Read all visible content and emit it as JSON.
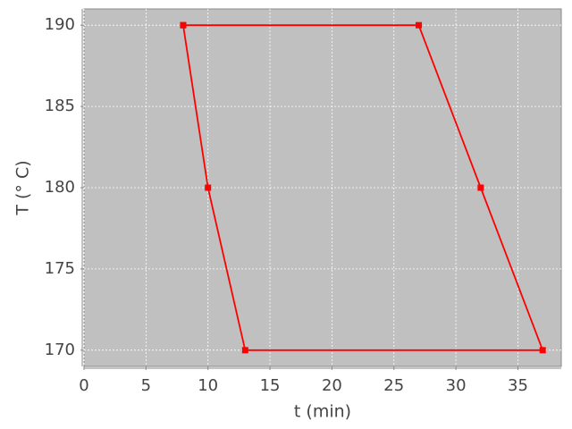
{
  "chart_data": {
    "type": "line",
    "x_label": "t (min)",
    "y_label": "T (° C)",
    "x": [
      8,
      10,
      13,
      37,
      32,
      27,
      8
    ],
    "series": [
      {
        "name": null,
        "color": "#ff0000",
        "values": [
          190,
          180,
          170,
          170,
          180,
          190,
          190
        ]
      }
    ],
    "xlim": [
      0,
      38.5
    ],
    "ylim": [
      169,
      191
    ],
    "xticks": [
      0,
      5,
      10,
      15,
      20,
      25,
      30,
      35
    ],
    "yticks": [
      170,
      175,
      180,
      185,
      190
    ],
    "grid": true,
    "background": "#c0c0c0"
  }
}
